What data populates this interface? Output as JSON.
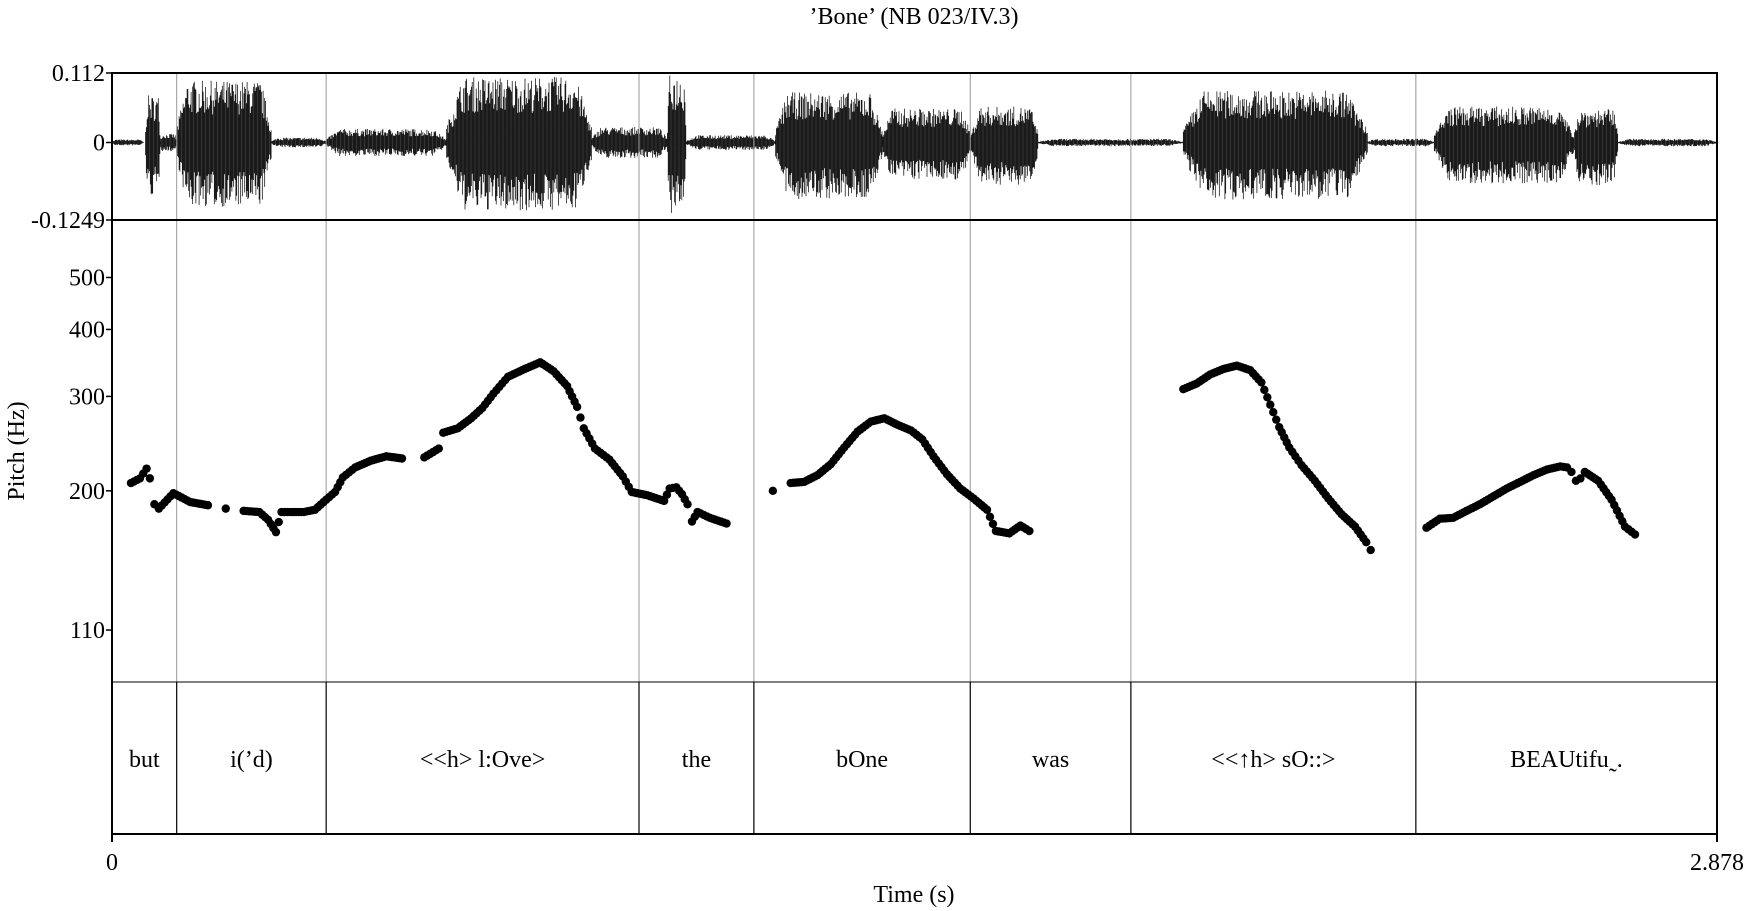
{
  "chart_data": {
    "type": "scatter",
    "title": "’Bone’ (NB 023/IV.3)",
    "xlabel": "Time (s)",
    "ylabel": "Pitch (Hz)",
    "xlim": [
      0,
      2.878
    ],
    "x_tick_labels": [
      "0",
      "2.878"
    ],
    "waveform": {
      "ylim": [
        -0.1249,
        0.112
      ],
      "tick_labels": [
        "0.112",
        "0",
        "-0.1249"
      ],
      "tick_values": [
        0.112,
        0,
        -0.1249
      ],
      "envelope": [
        [
          0,
          0.056,
          0.005,
          -0.005
        ],
        [
          0.06,
          0.086,
          0.076,
          -0.087
        ],
        [
          0.086,
          0.116,
          0.014,
          -0.014
        ],
        [
          0.116,
          0.286,
          0.1,
          -0.104
        ],
        [
          0.286,
          0.384,
          0.008,
          -0.008
        ],
        [
          0.384,
          0.6,
          0.022,
          -0.022
        ],
        [
          0.6,
          0.86,
          0.106,
          -0.11
        ],
        [
          0.86,
          0.996,
          0.025,
          -0.025
        ],
        [
          0.996,
          1.03,
          0.11,
          -0.115
        ],
        [
          1.03,
          1.19,
          0.012,
          -0.012
        ],
        [
          1.19,
          1.381,
          0.081,
          -0.092
        ],
        [
          1.381,
          1.541,
          0.055,
          -0.06
        ],
        [
          1.541,
          1.661,
          0.058,
          -0.068
        ],
        [
          1.661,
          1.921,
          0.006,
          -0.006
        ],
        [
          1.921,
          2.251,
          0.084,
          -0.092
        ],
        [
          2.251,
          2.371,
          0.006,
          -0.006
        ],
        [
          2.371,
          2.621,
          0.058,
          -0.066
        ],
        [
          2.621,
          2.701,
          0.054,
          -0.07
        ],
        [
          2.701,
          2.878,
          0.006,
          -0.006
        ]
      ]
    },
    "pitch": {
      "scale": "log",
      "ylim": [
        88,
        640
      ],
      "tick_values": [
        500,
        400,
        300,
        200,
        110
      ],
      "tick_labels": [
        "500",
        "400",
        "300",
        "200",
        "110"
      ],
      "points": [
        [
          0.034,
          206.8
        ],
        [
          0.05,
          210.9
        ],
        [
          0.062,
          220.0
        ],
        [
          0.068,
          211.0
        ],
        [
          0.076,
          188.8
        ],
        [
          0.084,
          185.3
        ],
        [
          0.11,
          198.0
        ],
        [
          0.14,
          190.6
        ],
        [
          0.172,
          188.0
        ],
        [
          0.204,
          185.3
        ],
        [
          0.236,
          183.5
        ],
        [
          0.264,
          182.6
        ],
        [
          0.28,
          176.6
        ],
        [
          0.294,
          167.5
        ],
        [
          0.304,
          182.6
        ],
        [
          0.32,
          182.6
        ],
        [
          0.344,
          182.6
        ],
        [
          0.364,
          184.4
        ],
        [
          0.384,
          192.5
        ],
        [
          0.4,
          199.0
        ],
        [
          0.414,
          211.9
        ],
        [
          0.436,
          221.1
        ],
        [
          0.464,
          227.6
        ],
        [
          0.492,
          232.0
        ],
        [
          0.52,
          229.8
        ],
        [
          0.56,
          230.9
        ],
        [
          0.586,
          239.8
        ],
        [
          0.594,
          256.7
        ],
        [
          0.62,
          261.6
        ],
        [
          0.644,
          273.1
        ],
        [
          0.664,
          285.4
        ],
        [
          0.684,
          303.6
        ],
        [
          0.71,
          326.3
        ],
        [
          0.74,
          337.5
        ],
        [
          0.768,
          347.3
        ],
        [
          0.792,
          334.2
        ],
        [
          0.816,
          313.7
        ],
        [
          0.834,
          286.8
        ],
        [
          0.846,
          261.6
        ],
        [
          0.866,
          239.8
        ],
        [
          0.892,
          228.7
        ],
        [
          0.916,
          212.8
        ],
        [
          0.932,
          199.0
        ],
        [
          0.96,
          196.2
        ],
        [
          0.99,
          191.5
        ],
        [
          1.0,
          202.0
        ],
        [
          1.012,
          203.0
        ],
        [
          1.022,
          197.2
        ],
        [
          1.032,
          188.8
        ],
        [
          1.04,
          175.3
        ],
        [
          1.05,
          182.6
        ],
        [
          1.072,
          178.1
        ],
        [
          1.102,
          173.8
        ],
        [
          1.185,
          200.0
        ],
        [
          1.217,
          206.8
        ],
        [
          1.241,
          207.8
        ],
        [
          1.265,
          213.9
        ],
        [
          1.289,
          224.3
        ],
        [
          1.313,
          241.0
        ],
        [
          1.337,
          257.9
        ],
        [
          1.361,
          269.3
        ],
        [
          1.385,
          273.1
        ],
        [
          1.409,
          265.4
        ],
        [
          1.433,
          259.1
        ],
        [
          1.453,
          249.4
        ],
        [
          1.473,
          232.0
        ],
        [
          1.497,
          214.9
        ],
        [
          1.521,
          202.0
        ],
        [
          1.545,
          193.5
        ],
        [
          1.569,
          184.4
        ],
        [
          1.585,
          168.3
        ],
        [
          1.609,
          166.6
        ],
        [
          1.629,
          172.3
        ],
        [
          1.645,
          168.3
        ],
        [
          1.921,
          309.5
        ],
        [
          1.945,
          317.1
        ],
        [
          1.969,
          329.5
        ],
        [
          1.993,
          337.5
        ],
        [
          2.017,
          342.4
        ],
        [
          2.041,
          335.8
        ],
        [
          2.061,
          318.6
        ],
        [
          2.077,
          289.5
        ],
        [
          2.093,
          262.9
        ],
        [
          2.111,
          241.0
        ],
        [
          2.133,
          223.3
        ],
        [
          2.157,
          208.8
        ],
        [
          2.181,
          193.5
        ],
        [
          2.205,
          180.8
        ],
        [
          2.229,
          171.5
        ],
        [
          2.249,
          160.4
        ],
        [
          2.257,
          155.1
        ],
        [
          2.357,
          170.7
        ],
        [
          2.381,
          177.4
        ],
        [
          2.405,
          178.1
        ],
        [
          2.429,
          183.5
        ],
        [
          2.453,
          188.8
        ],
        [
          2.477,
          195.3
        ],
        [
          2.501,
          202.0
        ],
        [
          2.525,
          207.8
        ],
        [
          2.549,
          213.9
        ],
        [
          2.573,
          219.1
        ],
        [
          2.597,
          222.1
        ],
        [
          2.609,
          221.1
        ],
        [
          2.617,
          216.9
        ],
        [
          2.625,
          208.8
        ],
        [
          2.633,
          210.9
        ],
        [
          2.641,
          216.9
        ],
        [
          2.665,
          208.8
        ],
        [
          2.689,
          192.5
        ],
        [
          2.713,
          171.5
        ],
        [
          2.731,
          165.8
        ]
      ]
    },
    "tier": {
      "boundaries": [
        0.116,
        0.384,
        0.945,
        1.151,
        1.539,
        1.827,
        2.338
      ],
      "intervals": [
        {
          "start": 0,
          "end": 0.116,
          "label": "but"
        },
        {
          "start": 0.116,
          "end": 0.384,
          "label": "i(’d)"
        },
        {
          "start": 0.384,
          "end": 0.945,
          "label": "<<h> l:Ove>"
        },
        {
          "start": 0.945,
          "end": 1.151,
          "label": "the"
        },
        {
          "start": 1.151,
          "end": 1.539,
          "label": "bOne"
        },
        {
          "start": 1.539,
          "end": 1.827,
          "label": "was"
        },
        {
          "start": 1.827,
          "end": 2.338,
          "label": "<<↑h> sO::>"
        },
        {
          "start": 2.338,
          "end": 2.878,
          "label": "BEAUtifu˷."
        }
      ]
    },
    "grid": false,
    "legend": "none"
  }
}
